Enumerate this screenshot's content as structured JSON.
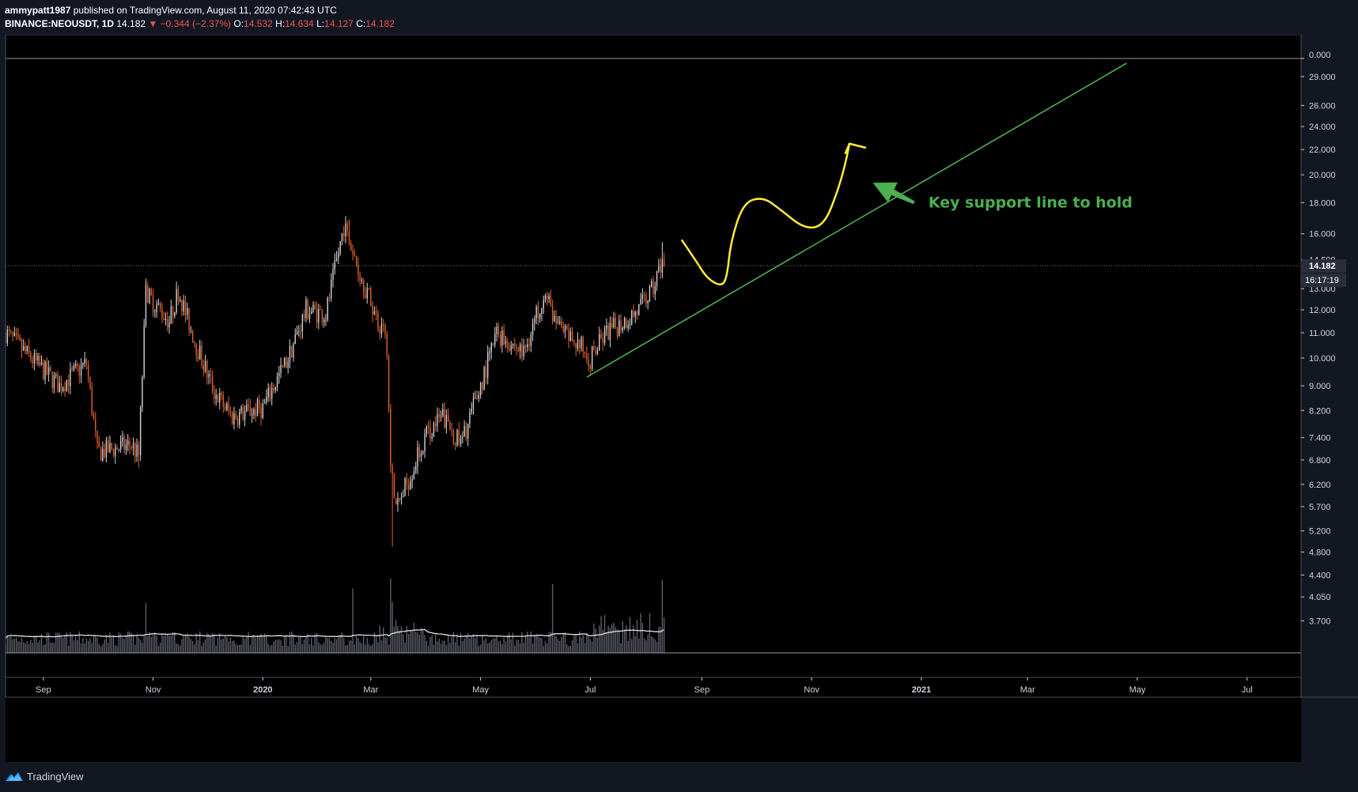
{
  "header": {
    "author": "ammypatt1987",
    "published_text": "published on TradingView.com, August 11, 2020 07:42:43 UTC",
    "symbol": "BINANCE:NEOUSDT, 1D",
    "last": "14.182",
    "change": "▼ −0.344 (−2.37%)",
    "o_label": "O:",
    "o_value": "14.532",
    "h_label": "H:",
    "h_value": "14.634",
    "l_label": "L:",
    "l_value": "14.127",
    "c_label": "C:",
    "c_value": "14.182"
  },
  "footer": {
    "brand": "TradingView"
  },
  "colors": {
    "background": "#000000",
    "up": "#d1d4dc",
    "down": "#e0632a",
    "trendline": "#4caf50",
    "sketch": "#ffeb3b",
    "annotation": "#4caf50"
  },
  "chart_data": {
    "type": "candlestick",
    "title": "",
    "log_scale": true,
    "ylim": [
      3.5,
      30.5
    ],
    "y_ticks": [
      "29.000",
      "26.000",
      "24.000",
      "22.000",
      "20.000",
      "18.000",
      "16.000",
      "14.500",
      "13.000",
      "12.000",
      "11.000",
      "10.000",
      "9.000",
      "8.200",
      "7.400",
      "6.800",
      "6.200",
      "5.700",
      "5.200",
      "4.800",
      "4.400",
      "4.050",
      "3.700"
    ],
    "top_label": "0.000",
    "x_labels": [
      "Sep",
      "Nov",
      "2020",
      "Mar",
      "May",
      "Jul",
      "Sep",
      "Nov",
      "2021",
      "Mar",
      "May",
      "Jul"
    ],
    "x_label_dates": [
      "2019-09-01",
      "2019-11-01",
      "2020-01-01",
      "2020-03-01",
      "2020-05-01",
      "2020-07-01",
      "2020-09-01",
      "2020-11-01",
      "2021-01-01",
      "2021-03-01",
      "2021-05-01",
      "2021-07-01"
    ],
    "x_range": [
      "2019-08-11",
      "2021-07-31"
    ],
    "last_price": "14.182",
    "countdown": "16:17:19",
    "price_path": [
      [
        "2019-08-11",
        11.0
      ],
      [
        "2019-08-25",
        10.0
      ],
      [
        "2019-09-10",
        9.0
      ],
      [
        "2019-09-25",
        9.8
      ],
      [
        "2019-10-01",
        7.0
      ],
      [
        "2019-10-20",
        7.2
      ],
      [
        "2019-10-24",
        6.9
      ],
      [
        "2019-10-28",
        12.8
      ],
      [
        "2019-11-10",
        11.5
      ],
      [
        "2019-11-15",
        12.9
      ],
      [
        "2019-11-25",
        10.5
      ],
      [
        "2019-12-05",
        8.8
      ],
      [
        "2019-12-15",
        8.0
      ],
      [
        "2020-01-01",
        8.3
      ],
      [
        "2020-01-15",
        10.0
      ],
      [
        "2020-01-25",
        12.0
      ],
      [
        "2020-02-05",
        11.8
      ],
      [
        "2020-02-15",
        16.5
      ],
      [
        "2020-02-25",
        13.5
      ],
      [
        "2020-03-05",
        11.5
      ],
      [
        "2020-03-10",
        10.5
      ],
      [
        "2020-03-12",
        6.5
      ],
      [
        "2020-03-16",
        5.7
      ],
      [
        "2020-04-01",
        7.5
      ],
      [
        "2020-04-10",
        8.0
      ],
      [
        "2020-04-20",
        7.2
      ],
      [
        "2020-05-01",
        9.0
      ],
      [
        "2020-05-10",
        11.0
      ],
      [
        "2020-05-25",
        10.2
      ],
      [
        "2020-06-05",
        12.8
      ],
      [
        "2020-06-15",
        11.0
      ],
      [
        "2020-06-25",
        10.5
      ],
      [
        "2020-07-01",
        10.0
      ],
      [
        "2020-07-10",
        11.0
      ],
      [
        "2020-07-20",
        11.5
      ],
      [
        "2020-07-28",
        12.0
      ],
      [
        "2020-08-05",
        13.0
      ],
      [
        "2020-08-10",
        14.532
      ],
      [
        "2020-08-11",
        14.182
      ]
    ],
    "spikes": [
      [
        "2019-10-28",
        13.5,
        "high"
      ],
      [
        "2020-02-18",
        16.9,
        "high"
      ],
      [
        "2020-03-13",
        4.9,
        "low"
      ],
      [
        "2020-08-10",
        15.5,
        "high"
      ],
      [
        "2019-10-24",
        6.6,
        "low"
      ]
    ],
    "volume_spikes": [
      "2019-10-28",
      "2020-03-13",
      "2020-03-12",
      "2020-06-10",
      "2020-08-10",
      "2020-02-20"
    ],
    "trendline": {
      "from": [
        "2020-06-29",
        9.3
      ],
      "to": [
        "2021-04-25",
        30.5
      ]
    },
    "projection": [
      [
        "2020-08-21",
        15.6
      ],
      [
        "2020-08-29",
        14.4
      ],
      [
        "2020-09-04",
        13.5
      ],
      [
        "2020-09-12",
        13.1
      ],
      [
        "2020-09-15",
        13.6
      ],
      [
        "2020-09-17",
        15.5
      ],
      [
        "2020-09-24",
        18.0
      ],
      [
        "2020-10-05",
        18.4
      ],
      [
        "2020-10-15",
        17.5
      ],
      [
        "2020-10-28",
        16.3
      ],
      [
        "2020-11-08",
        16.5
      ],
      [
        "2020-11-16",
        19.0
      ],
      [
        "2020-11-20",
        21.0
      ],
      [
        "2020-11-22",
        22.5
      ]
    ],
    "annotation": {
      "text": "Key support line to hold",
      "arrow_tail": [
        "2020-12-28",
        18.0
      ],
      "arrow_head": [
        "2020-12-05",
        19.4
      ]
    }
  }
}
